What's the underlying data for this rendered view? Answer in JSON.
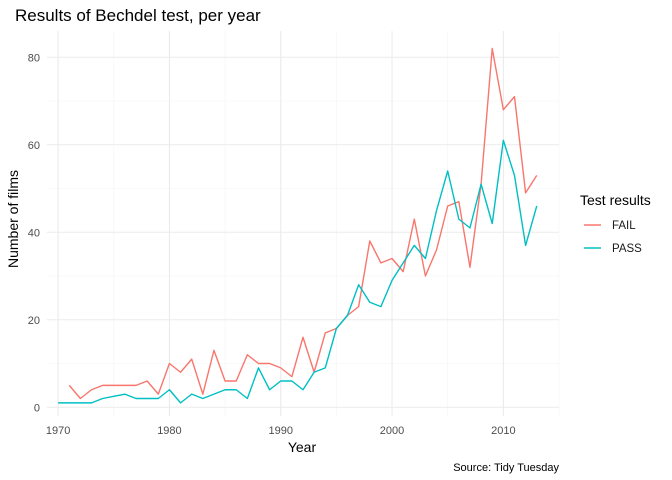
{
  "chart_data": {
    "type": "line",
    "title": "Results of Bechdel test, per year",
    "xlabel": "Year",
    "ylabel": "Number of films",
    "caption": "Source: Tidy Tuesday",
    "xlim": [
      1969,
      2015
    ],
    "ylim": [
      -2,
      86
    ],
    "x_ticks": [
      1970,
      1980,
      1990,
      2000,
      2010
    ],
    "y_ticks": [
      0,
      20,
      40,
      60,
      80
    ],
    "grid": true,
    "legend": {
      "title": "Test results",
      "position": "right"
    },
    "series": [
      {
        "name": "FAIL",
        "color": "#F8766D",
        "x": [
          1971,
          1972,
          1973,
          1974,
          1975,
          1976,
          1977,
          1978,
          1979,
          1980,
          1981,
          1982,
          1983,
          1984,
          1985,
          1986,
          1987,
          1988,
          1989,
          1990,
          1991,
          1992,
          1993,
          1994,
          1995,
          1996,
          1997,
          1998,
          1999,
          2000,
          2001,
          2002,
          2003,
          2004,
          2005,
          2006,
          2007,
          2008,
          2009,
          2010,
          2011,
          2012,
          2013
        ],
        "values": [
          5,
          2,
          4,
          5,
          5,
          5,
          5,
          6,
          3,
          10,
          8,
          11,
          3,
          13,
          6,
          6,
          12,
          10,
          10,
          9,
          7,
          16,
          8,
          17,
          18,
          21,
          23,
          38,
          33,
          34,
          31,
          43,
          30,
          36,
          46,
          47,
          32,
          51,
          82,
          68,
          71,
          49,
          53
        ]
      },
      {
        "name": "PASS",
        "color": "#00BFC4",
        "x": [
          1970,
          1971,
          1972,
          1973,
          1974,
          1975,
          1976,
          1977,
          1978,
          1979,
          1980,
          1981,
          1982,
          1983,
          1984,
          1985,
          1986,
          1987,
          1988,
          1989,
          1990,
          1991,
          1992,
          1993,
          1994,
          1995,
          1996,
          1997,
          1998,
          1999,
          2000,
          2001,
          2002,
          2003,
          2004,
          2005,
          2006,
          2007,
          2008,
          2009,
          2010,
          2011,
          2012,
          2013
        ],
        "values": [
          1,
          1,
          1,
          1,
          2,
          2.5,
          3,
          2,
          2,
          2,
          4,
          1,
          3,
          2,
          3,
          4,
          4,
          2,
          9,
          4,
          6,
          6,
          4,
          8,
          9,
          18,
          21,
          28,
          24,
          23,
          29,
          33,
          37,
          34,
          45,
          54,
          43,
          41,
          51,
          42,
          61,
          53,
          37,
          46
        ]
      }
    ]
  }
}
